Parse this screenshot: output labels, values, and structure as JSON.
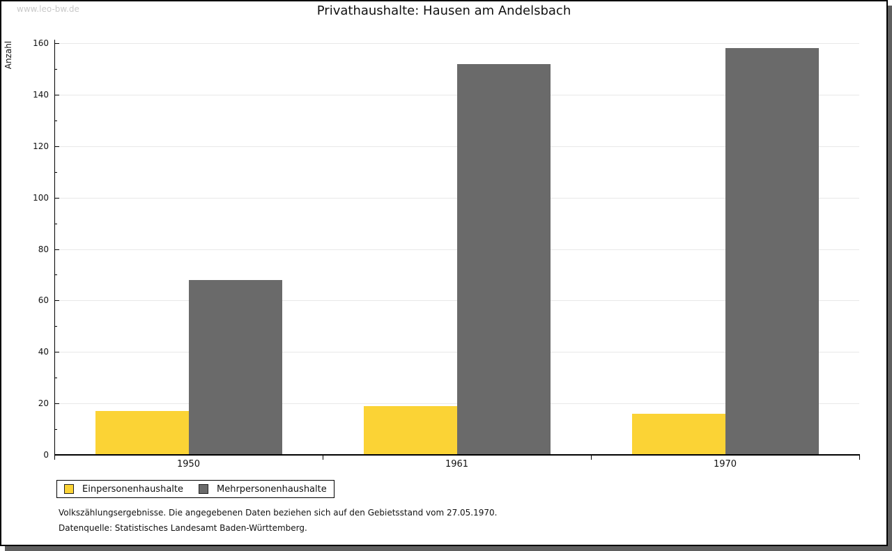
{
  "watermark": "www.leo-bw.de",
  "footnotes": {
    "line1": "Volkszählungsergebnisse. Die angegebenen Daten beziehen sich auf den Gebietsstand vom 27.05.1970.",
    "line2": "Datenquelle: Statistisches Landesamt Baden-Württemberg."
  },
  "chart_data": {
    "type": "bar",
    "title": "Privathaushalte: Hausen am Andelsbach",
    "xlabel": "",
    "ylabel": "Anzahl",
    "categories": [
      "1950",
      "1961",
      "1970"
    ],
    "series": [
      {
        "name": "Einpersonenhaushalte",
        "color": "#fbd335",
        "values": [
          17,
          19,
          16
        ]
      },
      {
        "name": "Mehrpersonenhaushalte",
        "color": "#6a6a6a",
        "values": [
          68,
          152,
          158
        ]
      }
    ],
    "ylim": [
      0,
      160
    ],
    "ytick_step": 20,
    "minor_tick_step": 10,
    "yticks": [
      0,
      20,
      40,
      60,
      80,
      100,
      120,
      140,
      160
    ],
    "grid": true,
    "legend_position": "bottom-left"
  },
  "colors": {
    "grid": "#e8e8e8",
    "axis": "#000000",
    "shadow": "#5f5f5f",
    "watermark": "#c9c9c9",
    "background": "#ffffff"
  }
}
